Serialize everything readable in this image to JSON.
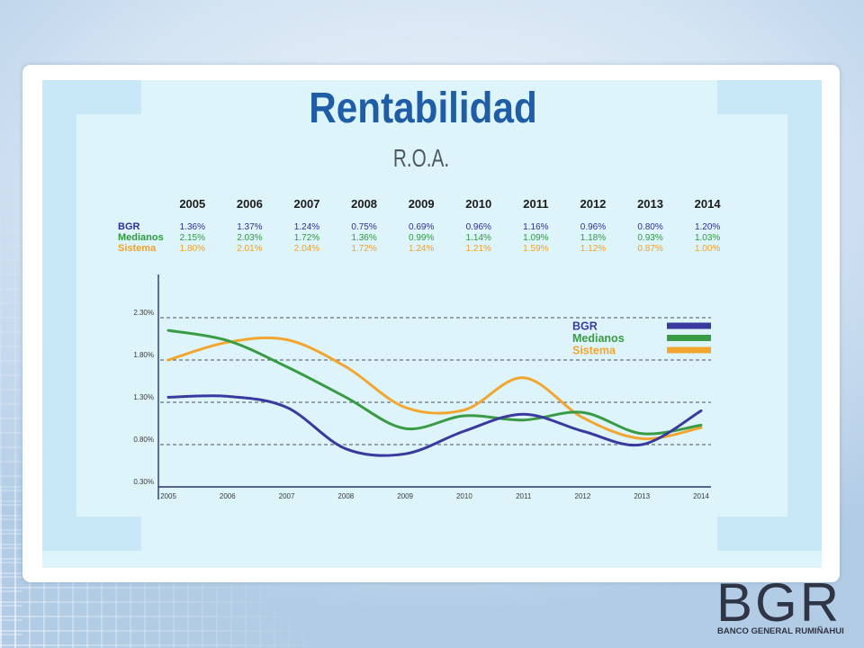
{
  "chart_data": {
    "type": "line",
    "title": "Rentabilidad",
    "subtitle": "R.O.A.",
    "x": [
      2005,
      2006,
      2007,
      2008,
      2009,
      2010,
      2011,
      2012,
      2013,
      2014
    ],
    "series": [
      {
        "name": "BGR",
        "color": "#3a3a9e",
        "values": [
          1.36,
          1.37,
          1.24,
          0.75,
          0.69,
          0.96,
          1.16,
          0.96,
          0.8,
          1.2
        ]
      },
      {
        "name": "Medianos",
        "color": "#3a9b45",
        "values": [
          2.15,
          2.03,
          1.72,
          1.36,
          0.99,
          1.14,
          1.09,
          1.18,
          0.93,
          1.03
        ]
      },
      {
        "name": "Sistema",
        "color": "#f2a630",
        "values": [
          1.8,
          2.01,
          2.04,
          1.72,
          1.24,
          1.21,
          1.59,
          1.12,
          0.87,
          1.0
        ]
      }
    ],
    "yticks": [
      "2.30%",
      "1.80%",
      "1.30%",
      "0.80%",
      "0.30%"
    ],
    "ylim": [
      0.3,
      2.8
    ],
    "grid": true,
    "legend": "top-right"
  },
  "table": {
    "columns": [
      "2005",
      "2006",
      "2007",
      "2008",
      "2009",
      "2010",
      "2011",
      "2012",
      "2013",
      "2014"
    ],
    "rows": [
      {
        "label": "BGR",
        "values": [
          "1.36%",
          "1.37%",
          "1.24%",
          "0.75%",
          "0.69%",
          "0.96%",
          "1.16%",
          "0.96%",
          "0.80%",
          "1.20%"
        ]
      },
      {
        "label": "Medianos",
        "values": [
          "2.15%",
          "2.03%",
          "1.72%",
          "1.36%",
          "0.99%",
          "1.14%",
          "1.09%",
          "1.18%",
          "0.93%",
          "1.03%"
        ]
      },
      {
        "label": "Sistema",
        "values": [
          "1.80%",
          "2.01%",
          "2.04%",
          "1.72%",
          "1.24%",
          "1.21%",
          "1.59%",
          "1.12%",
          "0.87%",
          "1.00%"
        ]
      }
    ]
  },
  "logo": {
    "mark": "BGR",
    "name": "BANCO GENERAL RUMIÑAHUI"
  }
}
